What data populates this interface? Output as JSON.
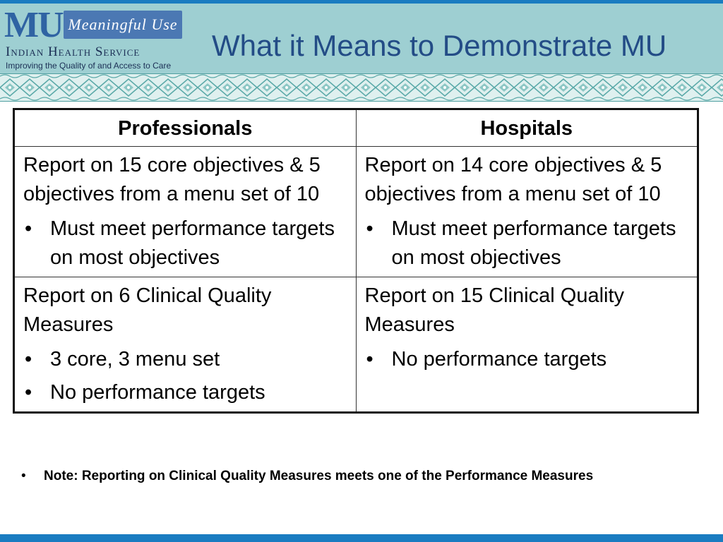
{
  "header": {
    "logo_mu": "MU",
    "logo_banner": "Meaningful Use",
    "logo_org": "Indian Health Service",
    "logo_tagline": "Improving the Quality of and Access to Care",
    "title": "What it Means to Demonstrate MU"
  },
  "colors": {
    "header_bg": "#9ecfd2",
    "accent_blue": "#1a7cc1",
    "title_blue": "#234c86",
    "pattern_bg": "#dff0ef",
    "pattern_fg": "#5aa9a8"
  },
  "table": {
    "headers": [
      "Professionals",
      "Hospitals"
    ],
    "rows": [
      [
        {
          "text": "Report on 15 core objectives & 5 objectives from a menu set of 10",
          "bullets": [
            "Must meet performance targets on most objectives"
          ]
        },
        {
          "text": "Report on 14 core objectives & 5 objectives from a menu set of 10",
          "bullets": [
            "Must meet performance targets on most objectives"
          ]
        }
      ],
      [
        {
          "text": "Report on 6 Clinical Quality Measures",
          "bullets": [
            "3 core, 3 menu set",
            "No performance targets"
          ]
        },
        {
          "text": "Report on 15 Clinical Quality Measures",
          "bullets": [
            "No performance targets"
          ]
        }
      ]
    ]
  },
  "note": {
    "bullet": "•",
    "text": "Note: Reporting on Clinical Quality Measures meets one of the Performance Measures"
  }
}
